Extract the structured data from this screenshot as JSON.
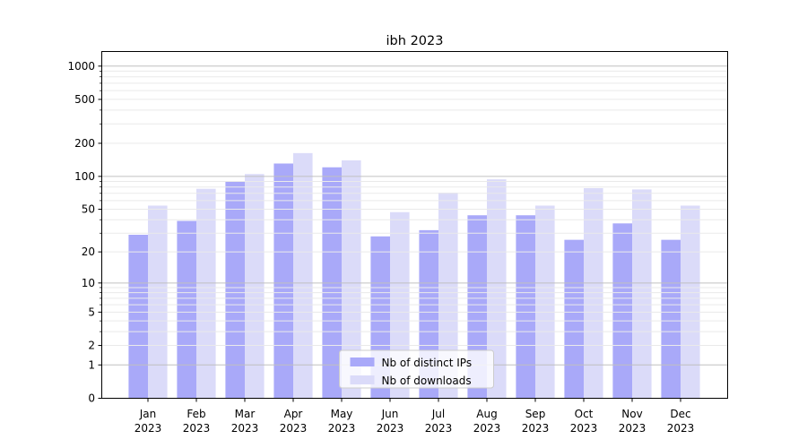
{
  "title": "ibh 2023",
  "chart_data": {
    "type": "bar",
    "title": "ibh 2023",
    "categories": [
      "Jan 2023",
      "Feb 2023",
      "Mar 2023",
      "Apr 2023",
      "May 2023",
      "Jun 2023",
      "Jul 2023",
      "Aug 2023",
      "Sep 2023",
      "Oct 2023",
      "Nov 2023",
      "Dec 2023"
    ],
    "series": [
      {
        "name": "Nb of distinct IPs",
        "color": "#a9a9f9",
        "values": [
          29,
          39,
          90,
          131,
          121,
          28,
          32,
          44,
          44,
          26,
          37,
          26
        ]
      },
      {
        "name": "Nb of downloads",
        "color": "#dbdbf9",
        "values": [
          54,
          77,
          105,
          163,
          140,
          47,
          71,
          94,
          54,
          78,
          76,
          54
        ]
      }
    ],
    "xlabel": "",
    "ylabel": "",
    "yscale": "log1p",
    "yticks": [
      0,
      1,
      2,
      5,
      10,
      20,
      50,
      100,
      200,
      500,
      1000
    ],
    "minor_gridlines": [
      3,
      4,
      6,
      7,
      8,
      9,
      30,
      40,
      60,
      70,
      80,
      90,
      300,
      400,
      600,
      700,
      800,
      900
    ],
    "ylim": [
      0,
      1355
    ],
    "grid": "both",
    "legend_position": "lower center",
    "legend_entries": [
      "Nb of distinct IPs",
      "Nb of downloads"
    ]
  },
  "colors": {
    "series_ips": "#a9a9f9",
    "series_downloads": "#dbdbf9",
    "grid_major": "#c0c0c0",
    "grid_minor": "#eaeaea",
    "spine": "#000000",
    "legend_border": "#cccccc",
    "legend_bg": "#ffffff"
  }
}
